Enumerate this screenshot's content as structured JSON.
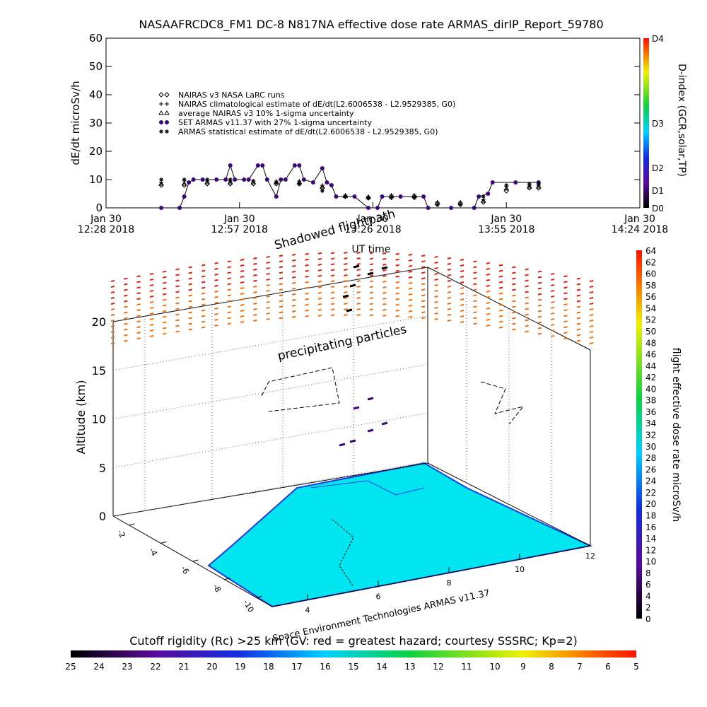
{
  "chart_data": [
    {
      "type": "line",
      "title": "NASAAFRCDC8_FM1 DC-8    N817NA effective dose rate ARMAS_dirIP_Report_59780",
      "xlabel": "UT time",
      "ylabel": "dE/dt microSv/h",
      "xlim": [
        "2018-01-30T12:28",
        "2018-01-30T14:24"
      ],
      "xticks": [
        {
          "value": "2018-01-30T12:28",
          "label": "Jan 30\n12:28 2018"
        },
        {
          "value": "2018-01-30T12:57",
          "label": "Jan 30\n12:57 2018"
        },
        {
          "value": "2018-01-30T13:26",
          "label": "Jan 30\n13:26 2018"
        },
        {
          "value": "2018-01-30T13:55",
          "label": "Jan 30\n13:55 2018"
        },
        {
          "value": "2018-01-30T14:24",
          "label": "Jan 30\n14:24 2018"
        }
      ],
      "ylim": [
        0,
        60
      ],
      "yticks": [
        0,
        10,
        20,
        30,
        40,
        50,
        60
      ],
      "series": [
        {
          "name": "NAIRAS v3 NASA LaRC runs",
          "marker": "diamond",
          "color": "#000000",
          "x": [
            "2018-01-30T12:40",
            "2018-01-30T12:45",
            "2018-01-30T12:50",
            "2018-01-30T12:55",
            "2018-01-30T13:00",
            "2018-01-30T13:05",
            "2018-01-30T13:10",
            "2018-01-30T13:15",
            "2018-01-30T13:20",
            "2018-01-30T13:25",
            "2018-01-30T13:30",
            "2018-01-30T13:35",
            "2018-01-30T13:40",
            "2018-01-30T13:45",
            "2018-01-30T13:50",
            "2018-01-30T13:55",
            "2018-01-30T14:00",
            "2018-01-30T14:02"
          ],
          "values": [
            8,
            8,
            8.5,
            8.5,
            8.5,
            8.5,
            8.5,
            7,
            4,
            3.5,
            4,
            4,
            1.5,
            1.5,
            2,
            6,
            7,
            7
          ]
        },
        {
          "name": "NAIRAS climatological estimate of dE/dt(L2.6006538 - L2.9529385, G0)",
          "marker": "plus",
          "color": "#000000",
          "x": [
            "2018-01-30T12:40",
            "2018-01-30T12:45",
            "2018-01-30T12:50",
            "2018-01-30T12:55",
            "2018-01-30T13:00",
            "2018-01-30T13:05",
            "2018-01-30T13:10",
            "2018-01-30T13:15",
            "2018-01-30T13:20",
            "2018-01-30T13:25",
            "2018-01-30T13:30",
            "2018-01-30T13:35",
            "2018-01-30T13:40",
            "2018-01-30T13:45",
            "2018-01-30T13:50",
            "2018-01-30T13:55",
            "2018-01-30T14:00",
            "2018-01-30T14:02"
          ],
          "values": [
            9,
            9.5,
            9.5,
            9.5,
            9.5,
            9.5,
            9.5,
            8,
            4.5,
            4,
            4.5,
            4.5,
            2,
            2,
            3,
            7.5,
            8,
            8
          ]
        },
        {
          "name": "average NAIRAS v3 10% 1-sigma uncertainty",
          "marker": "triangle",
          "color": "#000000",
          "x": [
            "2018-01-30T12:40",
            "2018-01-30T12:45",
            "2018-01-30T12:50",
            "2018-01-30T12:55",
            "2018-01-30T13:00",
            "2018-01-30T13:05",
            "2018-01-30T13:10",
            "2018-01-30T13:15",
            "2018-01-30T13:20",
            "2018-01-30T13:25",
            "2018-01-30T13:30",
            "2018-01-30T13:35",
            "2018-01-30T13:40",
            "2018-01-30T13:45",
            "2018-01-30T13:50",
            "2018-01-30T13:55",
            "2018-01-30T14:00",
            "2018-01-30T14:02"
          ],
          "values": [
            8.5,
            8.5,
            9,
            9,
            9,
            9,
            9,
            7.5,
            4.2,
            3.8,
            4.2,
            4.2,
            1.8,
            1.8,
            2.5,
            6.8,
            7.5,
            7.5
          ]
        },
        {
          "name": "SET ARMAS v11.37 with 27% 1-sigma uncertainty",
          "marker": "dot",
          "color": "#3c0a78",
          "line": true,
          "x": [
            "2018-01-30T12:40",
            "2018-01-30T12:44",
            "2018-01-30T12:45",
            "2018-01-30T12:46",
            "2018-01-30T12:47",
            "2018-01-30T12:49",
            "2018-01-30T12:52",
            "2018-01-30T12:54",
            "2018-01-30T12:55",
            "2018-01-30T12:56",
            "2018-01-30T12:58",
            "2018-01-30T12:59",
            "2018-01-30T13:01",
            "2018-01-30T13:02",
            "2018-01-30T13:03",
            "2018-01-30T13:05",
            "2018-01-30T13:06",
            "2018-01-30T13:07",
            "2018-01-30T13:09",
            "2018-01-30T13:10",
            "2018-01-30T13:11",
            "2018-01-30T13:13",
            "2018-01-30T13:15",
            "2018-01-30T13:16",
            "2018-01-30T13:17",
            "2018-01-30T13:18",
            "2018-01-30T13:22",
            "2018-01-30T13:25",
            "2018-01-30T13:27",
            "2018-01-30T13:28",
            "2018-01-30T13:32",
            "2018-01-30T13:37",
            "2018-01-30T13:38",
            "2018-01-30T13:43",
            "2018-01-30T13:48",
            "2018-01-30T13:49",
            "2018-01-30T13:51",
            "2018-01-30T13:52",
            "2018-01-30T13:57",
            "2018-01-30T14:02"
          ],
          "values": [
            0,
            0,
            4,
            9,
            10,
            10,
            10,
            10,
            15,
            10,
            10,
            10,
            15,
            15,
            10,
            4,
            10,
            10,
            15,
            15,
            10,
            9,
            14,
            9,
            8,
            4,
            4,
            0,
            0,
            4,
            4,
            4,
            0,
            0,
            0,
            4,
            5,
            9,
            9,
            9
          ]
        },
        {
          "name": "ARMAS statistical estimate of dE/dt(L2.6006538 - L2.9529385, G0)",
          "marker": "star",
          "color": "#000000",
          "x": [
            "2018-01-30T12:40",
            "2018-01-30T12:45",
            "2018-01-30T12:50",
            "2018-01-30T12:55",
            "2018-01-30T13:00",
            "2018-01-30T13:05",
            "2018-01-30T13:10",
            "2018-01-30T13:15",
            "2018-01-30T13:20",
            "2018-01-30T13:25",
            "2018-01-30T13:30",
            "2018-01-30T13:35",
            "2018-01-30T13:40",
            "2018-01-30T13:45",
            "2018-01-30T13:50",
            "2018-01-30T13:55",
            "2018-01-30T14:00",
            "2018-01-30T14:02"
          ],
          "values": [
            10,
            10,
            10,
            10,
            9.5,
            9,
            8.5,
            6,
            4,
            3.5,
            3.5,
            3.5,
            1,
            1,
            4,
            8,
            8.5,
            8.5
          ]
        }
      ],
      "colorbar": {
        "label": "D-index (GCR,solar,TP)",
        "ticks": [
          "D0",
          "D1",
          "D2",
          "D3",
          "D4"
        ]
      }
    },
    {
      "type": "surface3d",
      "zlabel": "Altitude (km)",
      "zlim": [
        0,
        20
      ],
      "zticks": [
        0,
        5,
        10,
        15,
        20
      ],
      "xlim": [
        3,
        12
      ],
      "xticks": [
        4,
        6,
        8,
        10,
        12
      ],
      "ylim": [
        -11,
        -1
      ],
      "yticks": [
        -10,
        -8,
        -6,
        -4,
        -2
      ],
      "annotations": [
        "Shadowed flightpath",
        "precipitating particles",
        "Space Environment Technologies ARMAS v11.37"
      ],
      "colorbar": {
        "label": "flight effective dose rate microSv/h",
        "lim": [
          0,
          64
        ],
        "ticks": [
          0,
          2,
          4,
          6,
          8,
          10,
          12,
          14,
          16,
          18,
          20,
          22,
          24,
          26,
          28,
          30,
          32,
          34,
          36,
          38,
          40,
          42,
          44,
          46,
          48,
          50,
          52,
          54,
          56,
          58,
          60,
          62,
          64
        ]
      }
    },
    {
      "type": "colorbar",
      "title": "Cutoff rigidity (Rc) >25 km (GV: red = greatest hazard; courtesy SSSRC; Kp=2)",
      "lim": [
        25,
        5
      ],
      "ticks": [
        25,
        24,
        23,
        22,
        21,
        20,
        19,
        18,
        17,
        16,
        15,
        14,
        13,
        12,
        11,
        10,
        9,
        8,
        7,
        6,
        5
      ]
    }
  ]
}
